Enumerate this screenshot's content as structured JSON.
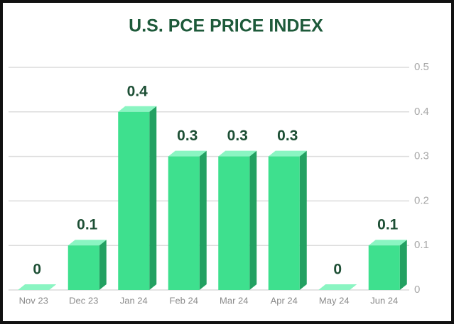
{
  "chart_data": {
    "type": "bar",
    "title": "U.S. PCE PRICE INDEX",
    "categories": [
      "Nov 23",
      "Dec 23",
      "Jan 24",
      "Feb 24",
      "Mar 24",
      "Apr 24",
      "May 24",
      "Jun 24"
    ],
    "values": [
      0,
      0.1,
      0.4,
      0.3,
      0.3,
      0.3,
      0,
      0.1
    ],
    "color": "#3ee08e",
    "ylim": [
      0,
      0.5
    ],
    "yticks": [
      0,
      0.1,
      0.2,
      0.3,
      0.4,
      0.5
    ],
    "grid": true
  }
}
